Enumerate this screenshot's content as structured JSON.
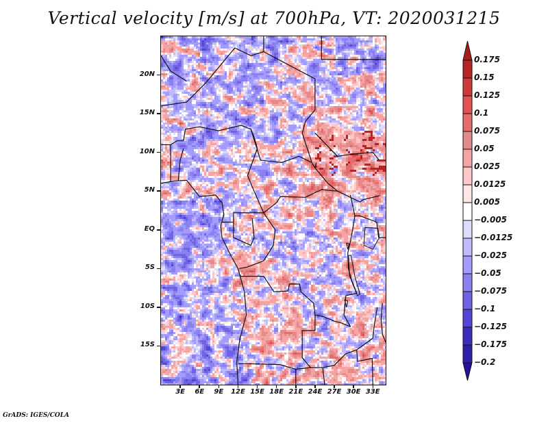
{
  "title": "Vertical velocity [m/s] at 700hPa, VT: 2020031215",
  "credit": "GrADS: IGES/COLA",
  "map": {
    "variable": "Vertical velocity",
    "units": "m/s",
    "level": "700hPa",
    "valid_time": "2020031215",
    "lon_range": [
      0,
      35
    ],
    "lat_range": [
      -20,
      25
    ],
    "lat_ticks": [
      {
        "value": 20,
        "label": "20N"
      },
      {
        "value": 15,
        "label": "15N"
      },
      {
        "value": 10,
        "label": "10N"
      },
      {
        "value": 5,
        "label": "5N"
      },
      {
        "value": 0,
        "label": "EQ"
      },
      {
        "value": -5,
        "label": "5S"
      },
      {
        "value": -10,
        "label": "10S"
      },
      {
        "value": -15,
        "label": "15S"
      }
    ],
    "lon_ticks": [
      {
        "value": 3,
        "label": "3E"
      },
      {
        "value": 6,
        "label": "6E"
      },
      {
        "value": 9,
        "label": "9E"
      },
      {
        "value": 12,
        "label": "12E"
      },
      {
        "value": 15,
        "label": "15E"
      },
      {
        "value": 18,
        "label": "18E"
      },
      {
        "value": 21,
        "label": "21E"
      },
      {
        "value": 24,
        "label": "24E"
      },
      {
        "value": 27,
        "label": "27E"
      },
      {
        "value": 30,
        "label": "30E"
      },
      {
        "value": 33,
        "label": "33E"
      }
    ]
  },
  "colorbar": {
    "levels": [
      "0.175",
      "0.15",
      "0.125",
      "0.1",
      "0.075",
      "0.05",
      "0.025",
      "0.0125",
      "0.005",
      "-0.005",
      "-0.0125",
      "-0.025",
      "-0.05",
      "-0.075",
      "-0.1",
      "-0.125",
      "-0.175",
      "-0.2"
    ],
    "colors": [
      "#a91c1c",
      "#b72424",
      "#cc3a3a",
      "#e25252",
      "#e46c6c",
      "#e58a8a",
      "#f6a3a3",
      "#fdc7c7",
      "#ffe6e6",
      "#ffffff",
      "#dcdcfb",
      "#c0bafd",
      "#a49cfd",
      "#8b80f0",
      "#7063e3",
      "#5446d4",
      "#3c2dbe",
      "#2e21a7",
      "#2a0fa0"
    ]
  }
}
